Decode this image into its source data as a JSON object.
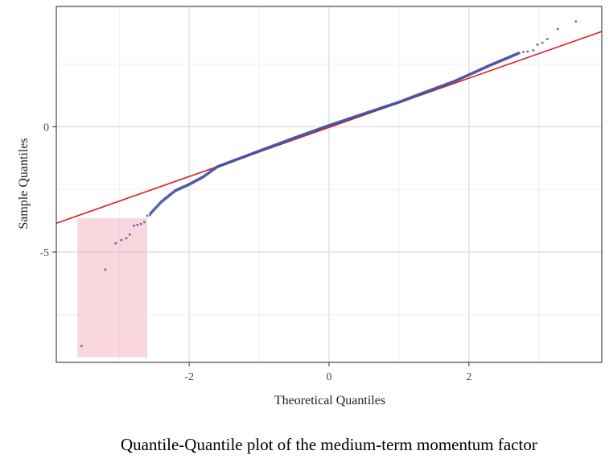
{
  "chart_data": {
    "type": "scatter",
    "xlabel": "Theoretical Quantiles",
    "ylabel": "Sample Quantiles",
    "xlim": [
      -3.9,
      3.9
    ],
    "ylim": [
      -9.4,
      4.8
    ],
    "x_ticks": [
      -2,
      0,
      2
    ],
    "x_tick_labels": [
      "-2",
      "0",
      "2"
    ],
    "y_ticks": [
      0,
      -5
    ],
    "y_tick_labels": [
      "0",
      "-5"
    ],
    "grid": true,
    "reference_line": {
      "x": [
        -3.9,
        3.9
      ],
      "y": [
        -3.85,
        3.8
      ],
      "color": "#e31a1c"
    },
    "highlight_region": {
      "x": [
        -3.6,
        -2.6
      ],
      "y": [
        -9.2,
        -3.65
      ],
      "color": "#f4a6b5"
    },
    "points_color": "#3f4fa0",
    "tail_points": [
      {
        "x": -3.54,
        "y": -8.75
      },
      {
        "x": -3.2,
        "y": -5.7
      },
      {
        "x": -3.05,
        "y": -4.65
      },
      {
        "x": -2.97,
        "y": -4.52
      },
      {
        "x": -2.9,
        "y": -4.45
      },
      {
        "x": -2.85,
        "y": -4.3
      },
      {
        "x": -2.79,
        "y": -3.95
      },
      {
        "x": -2.74,
        "y": -3.92
      },
      {
        "x": -2.69,
        "y": -3.88
      },
      {
        "x": -2.64,
        "y": -3.8
      },
      {
        "x": -2.6,
        "y": -3.55
      },
      {
        "x": -2.56,
        "y": -3.53
      },
      {
        "x": 2.72,
        "y": 2.95
      },
      {
        "x": 2.78,
        "y": 2.98
      },
      {
        "x": 2.84,
        "y": 3.0
      },
      {
        "x": 2.92,
        "y": 3.05
      },
      {
        "x": 2.98,
        "y": 3.28
      },
      {
        "x": 3.05,
        "y": 3.35
      },
      {
        "x": 3.12,
        "y": 3.5
      },
      {
        "x": 3.27,
        "y": 3.9
      },
      {
        "x": 3.53,
        "y": 4.2
      }
    ],
    "body_curve": [
      [
        -2.55,
        -3.45
      ],
      [
        -2.4,
        -3.0
      ],
      [
        -2.2,
        -2.55
      ],
      [
        -2.0,
        -2.3
      ],
      [
        -1.8,
        -2.0
      ],
      [
        -1.6,
        -1.6
      ],
      [
        -1.0,
        -0.97
      ],
      [
        -0.5,
        -0.45
      ],
      [
        0.0,
        0.05
      ],
      [
        0.5,
        0.52
      ],
      [
        1.0,
        0.98
      ],
      [
        1.3,
        1.3
      ],
      [
        1.8,
        1.82
      ],
      [
        2.3,
        2.45
      ],
      [
        2.7,
        2.92
      ]
    ],
    "body_point_count": 240
  },
  "caption": "Quantile-Quantile plot of the medium-term momentum factor"
}
